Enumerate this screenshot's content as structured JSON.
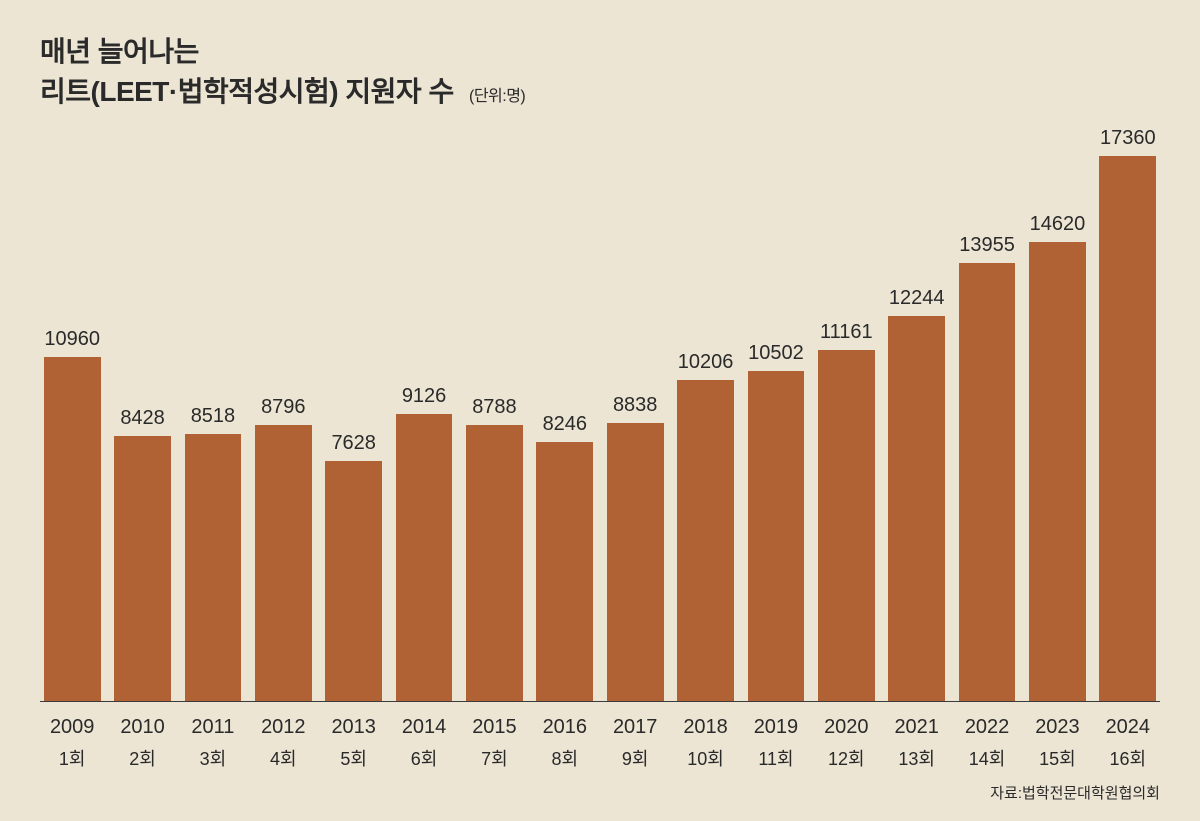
{
  "chart": {
    "type": "bar",
    "title_line1": "매년 늘어나는",
    "title_line2": "리트(LEET·법학적성시험) 지원자 수",
    "unit_label": "(단위:명)",
    "source_label": "자료:법학전문대학원협의회",
    "background_color": "#ece5d4",
    "bar_color": "#b06235",
    "baseline_color": "#3a3a3a",
    "text_color": "#2a2a2a",
    "title_fontsize": 28,
    "unit_fontsize": 16,
    "value_fontsize": 20,
    "year_fontsize": 20,
    "round_fontsize": 18,
    "source_fontsize": 15,
    "y_max": 18500,
    "bar_width_pct": 88,
    "bars": [
      {
        "year": "2009",
        "round": "1회",
        "value": 10960
      },
      {
        "year": "2010",
        "round": "2회",
        "value": 8428
      },
      {
        "year": "2011",
        "round": "3회",
        "value": 8518
      },
      {
        "year": "2012",
        "round": "4회",
        "value": 8796
      },
      {
        "year": "2013",
        "round": "5회",
        "value": 7628
      },
      {
        "year": "2014",
        "round": "6회",
        "value": 9126
      },
      {
        "year": "2015",
        "round": "7회",
        "value": 8788
      },
      {
        "year": "2016",
        "round": "8회",
        "value": 8246
      },
      {
        "year": "2017",
        "round": "9회",
        "value": 8838
      },
      {
        "year": "2018",
        "round": "10회",
        "value": 10206
      },
      {
        "year": "2019",
        "round": "11회",
        "value": 10502
      },
      {
        "year": "2020",
        "round": "12회",
        "value": 11161
      },
      {
        "year": "2021",
        "round": "13회",
        "value": 12244
      },
      {
        "year": "2022",
        "round": "14회",
        "value": 13955
      },
      {
        "year": "2023",
        "round": "15회",
        "value": 14620
      },
      {
        "year": "2024",
        "round": "16회",
        "value": 17360
      }
    ]
  }
}
